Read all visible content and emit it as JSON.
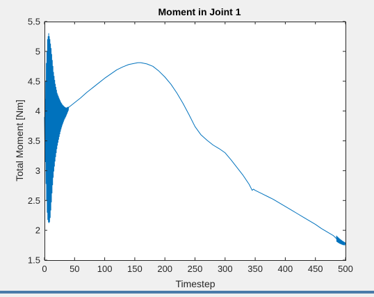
{
  "chart_data": {
    "type": "line",
    "title": "Moment in Joint 1",
    "xlabel": "Timestep",
    "ylabel": "Total Moment [Nm]",
    "xlim": [
      0,
      500
    ],
    "ylim": [
      1.5,
      5.5
    ],
    "x_ticks": [
      0,
      50,
      100,
      150,
      200,
      250,
      300,
      350,
      400,
      450,
      500
    ],
    "y_ticks": [
      1.5,
      2,
      2.5,
      3,
      3.5,
      4,
      4.5,
      5,
      5.5
    ],
    "x_tick_labels": [
      "0",
      "50",
      "100",
      "150",
      "200",
      "250",
      "300",
      "350",
      "400",
      "450",
      "500"
    ],
    "y_tick_labels": [
      "1.5",
      "2",
      "2.5",
      "3",
      "3.5",
      "4",
      "4.5",
      "5",
      "5.5"
    ],
    "grid": false,
    "series": [
      {
        "color": "#0072bd",
        "x": [
          0,
          5,
          10,
          15,
          20,
          25,
          30,
          35,
          40,
          50,
          60,
          70,
          80,
          90,
          100,
          110,
          120,
          130,
          140,
          150,
          155,
          160,
          165,
          170,
          180,
          190,
          200,
          210,
          220,
          230,
          240,
          250,
          260,
          270,
          280,
          290,
          300,
          310,
          320,
          330,
          340,
          345,
          347,
          350,
          360,
          370,
          380,
          390,
          400,
          410,
          420,
          430,
          440,
          450,
          460,
          470,
          480,
          485,
          490,
          495,
          500
        ],
        "y": [
          3.8,
          3.8,
          3.8,
          3.85,
          3.88,
          3.92,
          3.96,
          4.0,
          4.06,
          4.14,
          4.22,
          4.31,
          4.39,
          4.47,
          4.55,
          4.62,
          4.69,
          4.74,
          4.78,
          4.8,
          4.81,
          4.81,
          4.8,
          4.79,
          4.75,
          4.67,
          4.57,
          4.45,
          4.3,
          4.13,
          3.94,
          3.74,
          3.6,
          3.51,
          3.43,
          3.37,
          3.3,
          3.18,
          3.05,
          2.92,
          2.77,
          2.67,
          2.69,
          2.67,
          2.62,
          2.57,
          2.52,
          2.46,
          2.4,
          2.34,
          2.28,
          2.22,
          2.16,
          2.1,
          2.03,
          1.97,
          1.91,
          1.86,
          1.82,
          1.79,
          1.77
        ]
      }
    ],
    "oscillation_envelope": {
      "x": [
        0,
        3,
        5,
        7,
        9,
        11,
        13,
        15,
        18,
        21,
        24,
        27,
        30,
        33,
        36,
        40
      ],
      "upper": [
        3.9,
        4.8,
        5.2,
        5.3,
        5.2,
        5.05,
        4.85,
        4.65,
        4.45,
        4.3,
        4.22,
        4.15,
        4.1,
        4.07,
        4.05,
        4.07
      ],
      "lower": [
        3.7,
        2.6,
        2.2,
        2.12,
        2.15,
        2.4,
        2.7,
        2.95,
        3.2,
        3.4,
        3.55,
        3.68,
        3.78,
        3.86,
        3.92,
        4.02
      ]
    },
    "end_jitter": {
      "x_range": [
        485,
        500
      ],
      "amplitude": 0.05
    }
  }
}
